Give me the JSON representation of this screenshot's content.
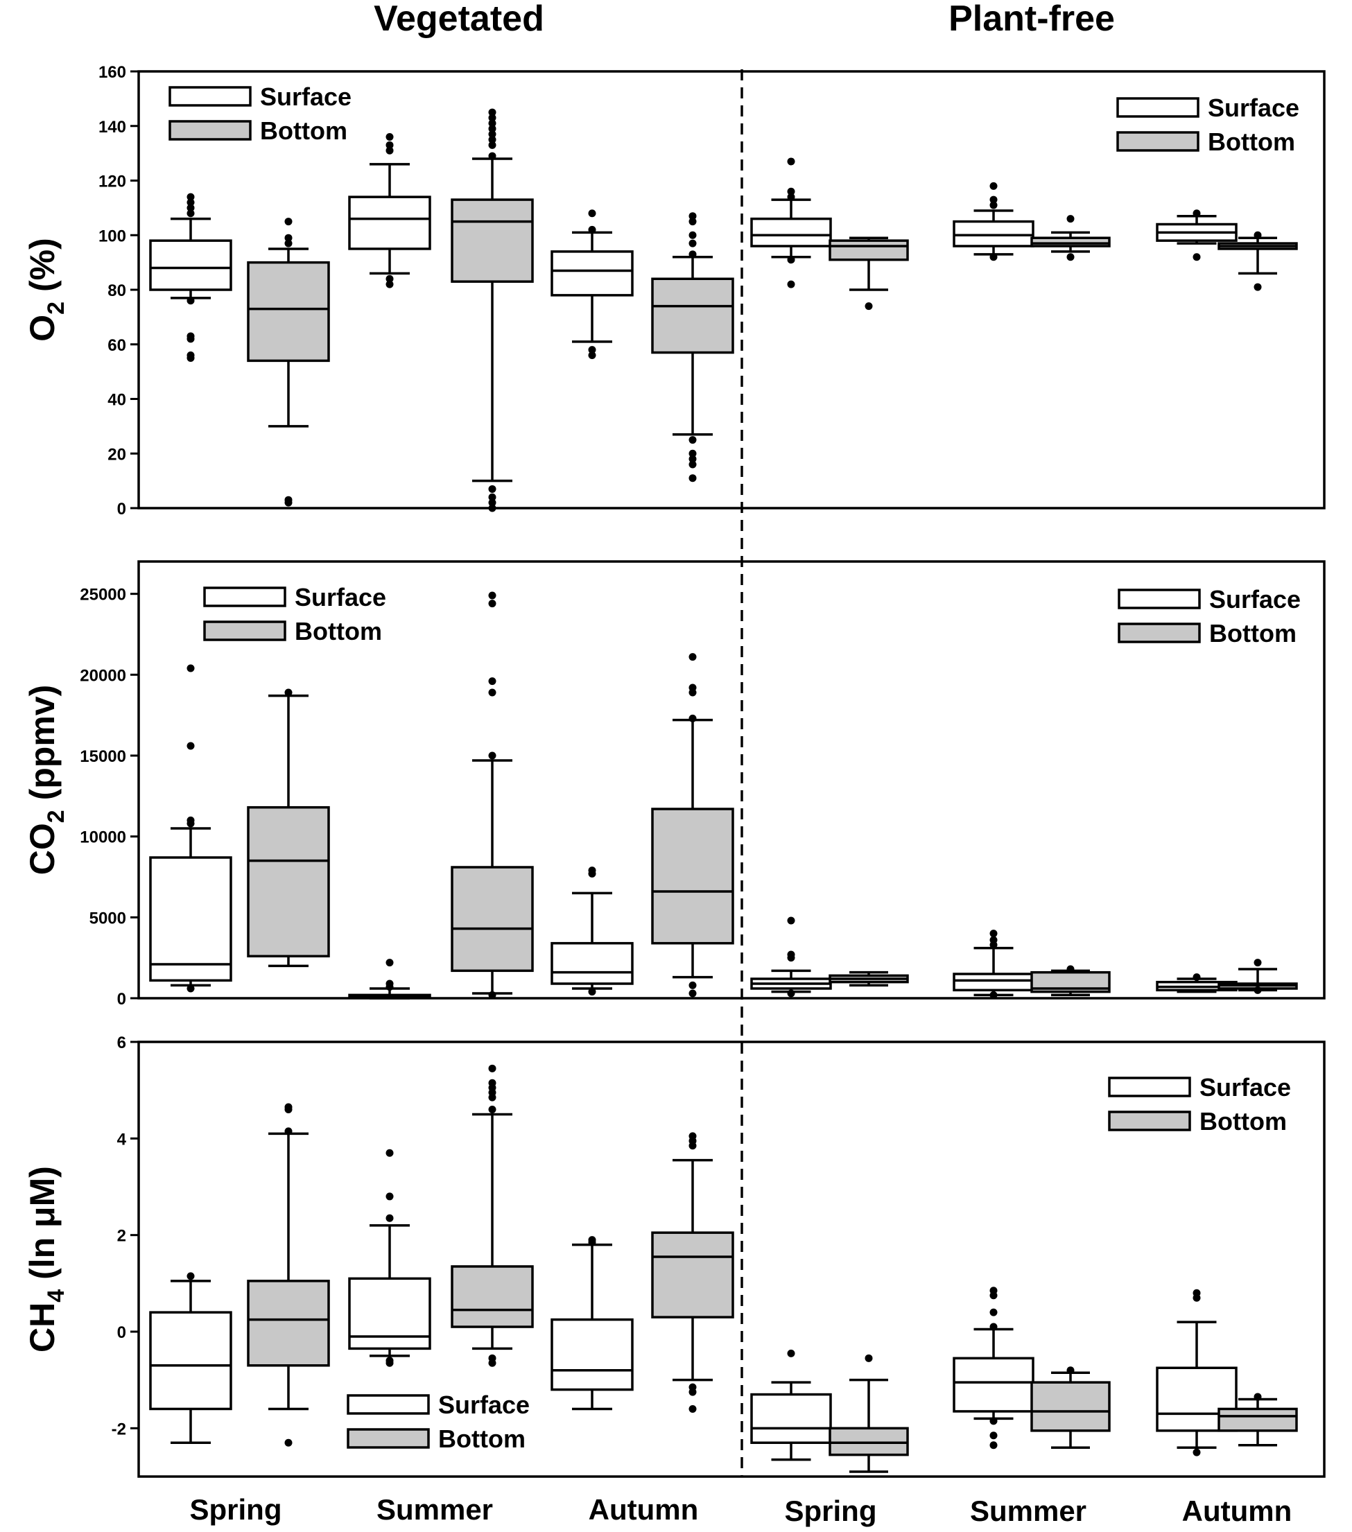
{
  "figure": {
    "column_titles": [
      "Vegetated",
      "Plant-free"
    ],
    "season_labels": [
      "Spring",
      "Summer",
      "Autumn",
      "Spring",
      "Summer",
      "Autumn"
    ],
    "legend": {
      "surface": "Surface",
      "bottom": "Bottom"
    }
  },
  "colors": {
    "surface": "#ffffff",
    "bottom": "#c8c8c8",
    "ink": "#000000"
  },
  "chart_data": [
    {
      "type": "box",
      "id": "o2",
      "ylabel_main": "O",
      "ylabel_sub": "2",
      "ylabel_rest": " (%)",
      "ylim": [
        0,
        160
      ],
      "yticks": [
        0,
        20,
        40,
        60,
        80,
        100,
        120,
        140,
        160
      ],
      "legend_positions": [
        "top-left",
        "top-right"
      ],
      "boxes": [
        {
          "group": "Vegetated",
          "season": "Spring",
          "series": "Surface",
          "q1": 80,
          "median": 88,
          "q3": 98,
          "whisker_low": 77,
          "whisker_high": 106,
          "outliers": [
            114,
            112,
            110,
            108,
            76,
            63,
            62,
            56,
            55
          ]
        },
        {
          "group": "Vegetated",
          "season": "Spring",
          "series": "Bottom",
          "q1": 54,
          "median": 73,
          "q3": 90,
          "whisker_low": 30,
          "whisker_high": 95,
          "outliers": [
            105,
            99,
            97,
            3,
            2
          ]
        },
        {
          "group": "Vegetated",
          "season": "Summer",
          "series": "Surface",
          "q1": 95,
          "median": 106,
          "q3": 114,
          "whisker_low": 86,
          "whisker_high": 126,
          "outliers": [
            136,
            133,
            131,
            84,
            82
          ]
        },
        {
          "group": "Vegetated",
          "season": "Summer",
          "series": "Bottom",
          "q1": 83,
          "median": 105,
          "q3": 113,
          "whisker_low": 10,
          "whisker_high": 128,
          "outliers": [
            145,
            143,
            141,
            139,
            137,
            135,
            133,
            129,
            7,
            4,
            2,
            0
          ]
        },
        {
          "group": "Vegetated",
          "season": "Autumn",
          "series": "Surface",
          "q1": 78,
          "median": 87,
          "q3": 94,
          "whisker_low": 61,
          "whisker_high": 101,
          "outliers": [
            108,
            102,
            58,
            56
          ]
        },
        {
          "group": "Vegetated",
          "season": "Autumn",
          "series": "Bottom",
          "q1": 57,
          "median": 74,
          "q3": 84,
          "whisker_low": 27,
          "whisker_high": 92,
          "outliers": [
            107,
            105,
            100,
            97,
            93,
            25,
            20,
            18,
            16,
            11
          ]
        },
        {
          "group": "Plant-free",
          "season": "Spring",
          "series": "Surface",
          "q1": 96,
          "median": 100,
          "q3": 106,
          "whisker_low": 92,
          "whisker_high": 113,
          "outliers": [
            127,
            116,
            114,
            91,
            82
          ]
        },
        {
          "group": "Plant-free",
          "season": "Spring",
          "series": "Bottom",
          "q1": 91,
          "median": 96,
          "q3": 98,
          "whisker_low": 80,
          "whisker_high": 99,
          "outliers": [
            74
          ]
        },
        {
          "group": "Plant-free",
          "season": "Summer",
          "series": "Surface",
          "q1": 96,
          "median": 100,
          "q3": 105,
          "whisker_low": 93,
          "whisker_high": 109,
          "outliers": [
            118,
            113,
            111,
            92
          ]
        },
        {
          "group": "Plant-free",
          "season": "Summer",
          "series": "Bottom",
          "q1": 96,
          "median": 97,
          "q3": 99,
          "whisker_low": 94,
          "whisker_high": 101,
          "outliers": [
            106,
            92
          ]
        },
        {
          "group": "Plant-free",
          "season": "Autumn",
          "series": "Surface",
          "q1": 98,
          "median": 101,
          "q3": 104,
          "whisker_low": 97,
          "whisker_high": 107,
          "outliers": [
            108,
            92
          ]
        },
        {
          "group": "Plant-free",
          "season": "Autumn",
          "series": "Bottom",
          "q1": 95,
          "median": 96,
          "q3": 97,
          "whisker_low": 86,
          "whisker_high": 99,
          "outliers": [
            100,
            81
          ]
        }
      ]
    },
    {
      "type": "box",
      "id": "co2",
      "ylabel_main": "CO",
      "ylabel_sub": "2",
      "ylabel_rest": " (ppmv)",
      "ylim": [
        0,
        27000
      ],
      "yticks": [
        0,
        5000,
        10000,
        15000,
        20000,
        25000
      ],
      "legend_positions": [
        "top-left",
        "top-right"
      ],
      "boxes": [
        {
          "group": "Vegetated",
          "season": "Spring",
          "series": "Surface",
          "q1": 1100,
          "median": 2100,
          "q3": 8700,
          "whisker_low": 800,
          "whisker_high": 10500,
          "outliers": [
            20400,
            15600,
            11000,
            10800,
            600
          ]
        },
        {
          "group": "Vegetated",
          "season": "Spring",
          "series": "Bottom",
          "q1": 2600,
          "median": 8500,
          "q3": 11800,
          "whisker_low": 2000,
          "whisker_high": 18700,
          "outliers": [
            18900
          ]
        },
        {
          "group": "Vegetated",
          "season": "Summer",
          "series": "Surface",
          "q1": 50,
          "median": 120,
          "q3": 200,
          "whisker_low": 0,
          "whisker_high": 600,
          "outliers": [
            2200,
            900,
            700
          ]
        },
        {
          "group": "Vegetated",
          "season": "Summer",
          "series": "Bottom",
          "q1": 1700,
          "median": 4300,
          "q3": 8100,
          "whisker_low": 300,
          "whisker_high": 14700,
          "outliers": [
            24900,
            24400,
            19600,
            18900,
            15000,
            200
          ]
        },
        {
          "group": "Vegetated",
          "season": "Autumn",
          "series": "Surface",
          "q1": 900,
          "median": 1600,
          "q3": 3400,
          "whisker_low": 600,
          "whisker_high": 6500,
          "outliers": [
            7900,
            7700,
            400
          ]
        },
        {
          "group": "Vegetated",
          "season": "Autumn",
          "series": "Bottom",
          "q1": 3400,
          "median": 6600,
          "q3": 11700,
          "whisker_low": 1300,
          "whisker_high": 17200,
          "outliers": [
            21100,
            19200,
            18900,
            17300,
            800,
            300
          ]
        },
        {
          "group": "Plant-free",
          "season": "Spring",
          "series": "Surface",
          "q1": 600,
          "median": 900,
          "q3": 1200,
          "whisker_low": 400,
          "whisker_high": 1700,
          "outliers": [
            4800,
            2700,
            2500,
            300
          ]
        },
        {
          "group": "Plant-free",
          "season": "Spring",
          "series": "Bottom",
          "q1": 1000,
          "median": 1200,
          "q3": 1400,
          "whisker_low": 800,
          "whisker_high": 1600,
          "outliers": []
        },
        {
          "group": "Plant-free",
          "season": "Summer",
          "series": "Surface",
          "q1": 500,
          "median": 1100,
          "q3": 1500,
          "whisker_low": 200,
          "whisker_high": 3100,
          "outliers": [
            4000,
            3600,
            3300,
            200
          ]
        },
        {
          "group": "Plant-free",
          "season": "Summer",
          "series": "Bottom",
          "q1": 400,
          "median": 600,
          "q3": 1600,
          "whisker_low": 200,
          "whisker_high": 1700,
          "outliers": [
            1800
          ]
        },
        {
          "group": "Plant-free",
          "season": "Autumn",
          "series": "Surface",
          "q1": 500,
          "median": 700,
          "q3": 1000,
          "whisker_low": 400,
          "whisker_high": 1200,
          "outliers": [
            1300
          ]
        },
        {
          "group": "Plant-free",
          "season": "Autumn",
          "series": "Bottom",
          "q1": 600,
          "median": 800,
          "q3": 900,
          "whisker_low": 500,
          "whisker_high": 1800,
          "outliers": [
            2200,
            500
          ]
        }
      ]
    },
    {
      "type": "box",
      "id": "ch4",
      "ylabel_main": "CH",
      "ylabel_sub": "4",
      "ylabel_rest": " (ln μM)",
      "ylim": [
        -3,
        6
      ],
      "yticks": [
        -2,
        0,
        2,
        4,
        6
      ],
      "legend_positions": [
        "bottom-center",
        "top-right"
      ],
      "boxes": [
        {
          "group": "Vegetated",
          "season": "Spring",
          "series": "Surface",
          "q1": -1.6,
          "median": -0.7,
          "q3": 0.4,
          "whisker_low": -2.3,
          "whisker_high": 1.05,
          "outliers": [
            1.15
          ]
        },
        {
          "group": "Vegetated",
          "season": "Spring",
          "series": "Bottom",
          "q1": -0.7,
          "median": 0.25,
          "q3": 1.05,
          "whisker_low": -1.6,
          "whisker_high": 4.1,
          "outliers": [
            4.65,
            4.6,
            4.15,
            -2.3
          ]
        },
        {
          "group": "Vegetated",
          "season": "Summer",
          "series": "Surface",
          "q1": -0.35,
          "median": -0.1,
          "q3": 1.1,
          "whisker_low": -0.5,
          "whisker_high": 2.2,
          "outliers": [
            3.7,
            2.8,
            2.35,
            -0.6,
            -0.65
          ]
        },
        {
          "group": "Vegetated",
          "season": "Summer",
          "series": "Bottom",
          "q1": 0.1,
          "median": 0.45,
          "q3": 1.35,
          "whisker_low": -0.35,
          "whisker_high": 4.5,
          "outliers": [
            5.45,
            5.15,
            5.05,
            4.95,
            4.85,
            4.6,
            -0.55,
            -0.65
          ]
        },
        {
          "group": "Vegetated",
          "season": "Autumn",
          "series": "Surface",
          "q1": -1.2,
          "median": -0.8,
          "q3": 0.25,
          "whisker_low": -1.6,
          "whisker_high": 1.8,
          "outliers": [
            1.9,
            1.85
          ]
        },
        {
          "group": "Vegetated",
          "season": "Autumn",
          "series": "Bottom",
          "q1": 0.3,
          "median": 1.55,
          "q3": 2.05,
          "whisker_low": -1.0,
          "whisker_high": 3.55,
          "outliers": [
            4.05,
            3.95,
            3.85,
            -1.15,
            -1.25,
            -1.6
          ]
        },
        {
          "group": "Plant-free",
          "season": "Spring",
          "series": "Surface",
          "q1": -2.3,
          "median": -2.0,
          "q3": -1.3,
          "whisker_low": -2.65,
          "whisker_high": -1.05,
          "outliers": [
            -0.45
          ]
        },
        {
          "group": "Plant-free",
          "season": "Spring",
          "series": "Bottom",
          "q1": -2.55,
          "median": -2.3,
          "q3": -2.0,
          "whisker_low": -2.9,
          "whisker_high": -1.0,
          "outliers": [
            -0.55
          ]
        },
        {
          "group": "Plant-free",
          "season": "Summer",
          "series": "Surface",
          "q1": -1.65,
          "median": -1.05,
          "q3": -0.55,
          "whisker_low": -1.8,
          "whisker_high": 0.05,
          "outliers": [
            0.85,
            0.75,
            0.4,
            0.1,
            -1.85,
            -2.15,
            -2.35
          ]
        },
        {
          "group": "Plant-free",
          "season": "Summer",
          "series": "Bottom",
          "q1": -2.05,
          "median": -1.65,
          "q3": -1.05,
          "whisker_low": -2.4,
          "whisker_high": -0.85,
          "outliers": [
            -0.8
          ]
        },
        {
          "group": "Plant-free",
          "season": "Autumn",
          "series": "Surface",
          "q1": -2.05,
          "median": -1.7,
          "q3": -0.75,
          "whisker_low": -2.4,
          "whisker_high": 0.2,
          "outliers": [
            0.8,
            0.7,
            -2.5
          ]
        },
        {
          "group": "Plant-free",
          "season": "Autumn",
          "series": "Bottom",
          "q1": -2.05,
          "median": -1.75,
          "q3": -1.6,
          "whisker_low": -2.35,
          "whisker_high": -1.4,
          "outliers": [
            -1.35
          ]
        }
      ]
    }
  ]
}
